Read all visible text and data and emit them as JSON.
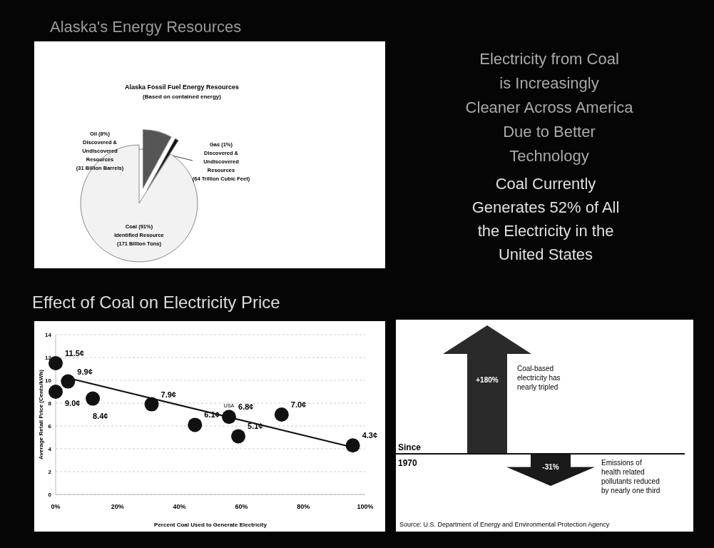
{
  "chart_data": [
    {
      "type": "pie",
      "title": "Alaska's Energy Resources",
      "subtitle": "Alaska Fossil Fuel Energy Resources",
      "annotations": [
        "(Based on contained energy)"
      ],
      "categories": [
        "Oil (8%)\nDiscovered &\nUndiscovered\nResources\n(31 Billion Barrels)",
        "Gas (1%)\nDiscovered &\nUndiscovered\nResources\n(64 Trillion Cubic Feet)",
        "Coal (91%)\nIdentified Resource\n(171 Billion Tons)"
      ],
      "values": [
        8,
        1,
        91
      ],
      "colors": [
        "#555555",
        "#111111",
        "#f2f2f2"
      ]
    },
    {
      "type": "scatter",
      "title": "Effect of Coal on Electricity Price",
      "xlabel": "Percent Coal Used to Generate Electricity",
      "ylabel": "Average Retail Price (Cents/kWh)",
      "xlim": [
        0,
        100
      ],
      "xticks": [
        {
          "value": 0,
          "label": "0%"
        },
        {
          "value": 20,
          "label": "20%"
        },
        {
          "value": 40,
          "label": "40%"
        },
        {
          "value": 60,
          "label": "60%"
        },
        {
          "value": 80,
          "label": "80%"
        },
        {
          "value": 100,
          "label": "100%"
        }
      ],
      "ylim": [
        0,
        14
      ],
      "yticks": [
        0,
        2,
        4,
        6,
        8,
        10,
        12,
        14
      ],
      "grid": "y",
      "annotations": [
        {
          "text": "USA",
          "x": 56,
          "y": 6.8
        }
      ],
      "series": [
        {
          "type": "scatter",
          "marker": "circle",
          "color": "#111111",
          "x": [
            0,
            4,
            0,
            12,
            31,
            45,
            56,
            59,
            73,
            96
          ],
          "values": [
            11.5,
            9.9,
            9.0,
            8.4,
            7.9,
            6.1,
            6.8,
            5.1,
            7.0,
            4.3
          ],
          "value_labels": [
            "11.5¢",
            "9.9¢",
            "9.0¢",
            "8.4¢",
            "7.9¢",
            "6.1¢",
            "6.8¢",
            "5.1¢",
            "7.0¢",
            "4.3¢"
          ]
        },
        {
          "type": "line",
          "color": "#111111",
          "x": [
            4,
            98
          ],
          "values": [
            10.2,
            4.0
          ]
        }
      ]
    },
    {
      "type": "other",
      "annotations": [
        "Electricity from Coal is Increasingly Cleaner Across America Due to Better Technology",
        "Coal Currently Generates 52% of All the Electricity in the United States",
        "Since\n1970",
        "Coal-based\nelectricity has\nnearly tripled",
        "Emissions of\nhealth related\npollutants reduced\nby nearly one third",
        "Source: U.S. Department of Energy and Environmental Protection Agency"
      ],
      "categories": [
        null,
        null
      ],
      "values": [
        180,
        -31
      ],
      "value_labels": [
        "+180%",
        "-31%"
      ],
      "colors": [
        "#2a2a2a",
        "#1a1a1a"
      ]
    }
  ]
}
